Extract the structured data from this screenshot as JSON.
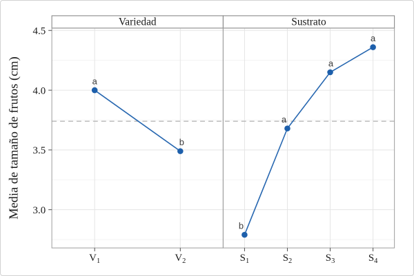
{
  "figure": {
    "background": "#ffffff",
    "border_color": "#d2d2d2"
  },
  "chart_data": {
    "type": "line",
    "title": "",
    "ylabel": "Media de tamaño de frutos (cm)",
    "xlabel": "",
    "ylim": [
      2.68,
      4.52
    ],
    "yticks": [
      3.0,
      3.5,
      4.0,
      4.5
    ],
    "ytick_labels": [
      "3.0",
      "3.5",
      "4.0",
      "4.5"
    ],
    "yticks_minor": [
      2.75,
      3.25,
      3.75,
      4.25
    ],
    "grid": true,
    "legend": "none",
    "reference_line": {
      "value": 3.74,
      "style": "dashed",
      "color": "#b8b8b8"
    },
    "series_color": "#2767b0",
    "marker_color": "#1d5fab",
    "point_label_color": "#3d3d3d",
    "grid_major_color": "#e5e5e5",
    "grid_minor_color": "#f0f0f0",
    "panel_border_color": "#9c9c9c",
    "strip_border_color": "#7d7d7d",
    "tick_color": "#4d4d4d",
    "text_color": "#1a1a1a",
    "panels": [
      {
        "title": "Variedad",
        "categories": [
          {
            "base": "V",
            "sub": "1"
          },
          {
            "base": "V",
            "sub": "2"
          }
        ],
        "values": [
          4.0,
          3.49
        ],
        "point_labels": [
          "a",
          "b"
        ],
        "label_dx": [
          0,
          2
        ]
      },
      {
        "title": "Sustrato",
        "categories": [
          {
            "base": "S",
            "sub": "1"
          },
          {
            "base": "S",
            "sub": "2"
          },
          {
            "base": "S",
            "sub": "3"
          },
          {
            "base": "S",
            "sub": "4"
          }
        ],
        "values": [
          2.79,
          3.68,
          4.15,
          4.36
        ],
        "point_labels": [
          "b",
          "a",
          "a",
          "a"
        ],
        "label_dx": [
          -5,
          -5,
          1,
          0
        ]
      }
    ]
  }
}
